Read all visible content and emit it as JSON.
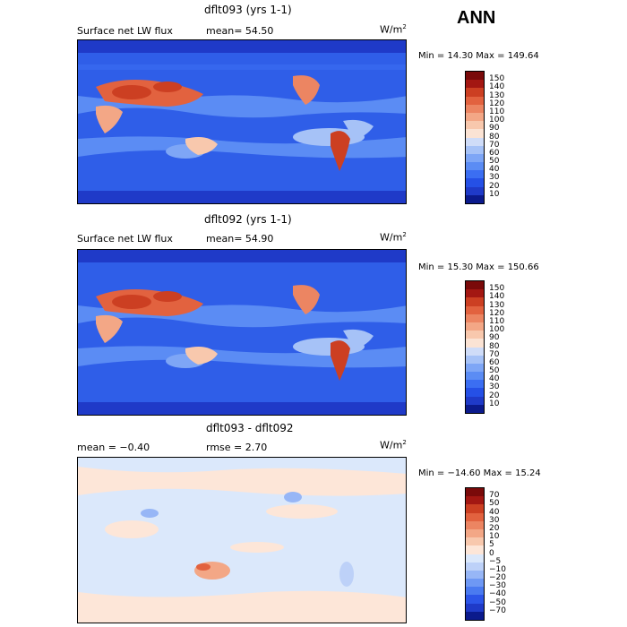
{
  "season": "ANN",
  "panels": [
    {
      "title": "dflt093 (yrs 1-1)",
      "left_label": "Surface net LW flux",
      "mid_label": "mean=  54.50",
      "units": "W/m",
      "units_sup": "2",
      "minmax": "Min =  14.30 Max = 149.64",
      "colorbar_labels": [
        "150",
        "140",
        "130",
        "120",
        "110",
        "100",
        "90",
        "80",
        "70",
        "60",
        "50",
        "40",
        "30",
        "20",
        "10"
      ]
    },
    {
      "title": "dflt092 (yrs 1-1)",
      "left_label": "Surface net LW flux",
      "mid_label": "mean=  54.90",
      "units": "W/m",
      "units_sup": "2",
      "minmax": "Min =  15.30 Max = 150.66",
      "colorbar_labels": [
        "150",
        "140",
        "130",
        "120",
        "110",
        "100",
        "90",
        "80",
        "70",
        "60",
        "50",
        "40",
        "30",
        "20",
        "10"
      ]
    },
    {
      "title": "dflt093 - dflt092",
      "left_label": "mean =  −0.40",
      "mid_label": "rmse =   2.70",
      "units": "W/m",
      "units_sup": "2",
      "minmax": "Min = −14.60 Max =  15.24",
      "colorbar_labels": [
        "70",
        "50",
        "40",
        "30",
        "20",
        "10",
        "5",
        "0",
        "−5",
        "−10",
        "−20",
        "−30",
        "−40",
        "−50",
        "−70"
      ]
    }
  ],
  "colors": {
    "abs_scale": [
      "#0b1a8c",
      "#1f3ac8",
      "#2550e6",
      "#3b6ef2",
      "#5b8cf4",
      "#7ea6f6",
      "#a6c2f7",
      "#cfdcf8",
      "#fbe3d4",
      "#f8c8ad",
      "#f3a786",
      "#ec8562",
      "#e2623f",
      "#cc3f22",
      "#a31712",
      "#7a0a0a"
    ],
    "diff_scale": [
      "#0b1a8c",
      "#1f3ac8",
      "#2c55e8",
      "#4a7af0",
      "#6e98f4",
      "#97b6f6",
      "#bdd1f8",
      "#dbe8fb",
      "#fde6d8",
      "#f8c8ad",
      "#f3a786",
      "#ec8562",
      "#e2623f",
      "#cc3f22",
      "#a31712",
      "#7a0a0a"
    ]
  }
}
